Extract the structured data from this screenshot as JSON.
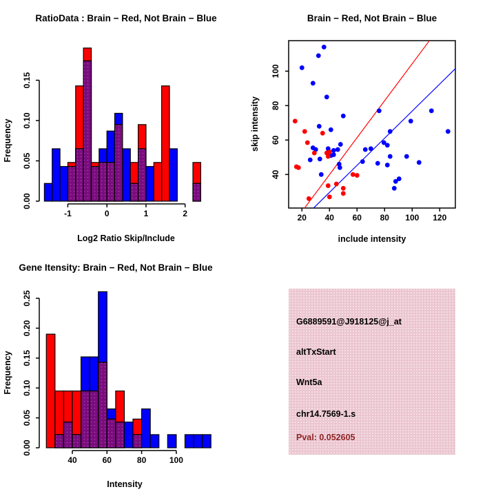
{
  "page": {
    "background": "#FFFFFF"
  },
  "colors": {
    "red": "#FF0000",
    "blue": "#0000FF",
    "overlap": "#7A0D7E",
    "overlap_dot": "#B13FB1",
    "axis": "#000000",
    "pval_text": "#8E2626",
    "panel_bg": "#EBC6D1",
    "panel_dot": "#F8E6EC"
  },
  "chart_data": [
    {
      "type": "bar",
      "subtype": "overlaid-histogram",
      "name": "ratio-histogram",
      "title": "RatioData : Brain − Red, Not Brain − Blue",
      "xlabel": "Log2 Ratio Skip/Include",
      "ylabel": "Frequency",
      "legend": {
        "red": "Brain",
        "blue": "Not Brain"
      },
      "x_ticks": [
        -1,
        0,
        1,
        2
      ],
      "y_ticks": [
        0,
        0.05,
        0.1,
        0.15
      ],
      "y_tick_labels": [
        "0.00",
        "0.05",
        "0.10",
        "0.15"
      ],
      "xlim": [
        -1.8,
        2.6
      ],
      "ylim": [
        0,
        0.197
      ],
      "grid": false,
      "bin_width": 0.2,
      "bins": [
        {
          "x": -1.6,
          "red": 0,
          "blue": 0.022
        },
        {
          "x": -1.4,
          "red": 0,
          "blue": 0.065
        },
        {
          "x": -1.2,
          "red": 0,
          "blue": 0.043
        },
        {
          "x": -1.0,
          "red": 0.048,
          "blue": 0.043
        },
        {
          "x": -0.8,
          "red": 0.143,
          "blue": 0.065
        },
        {
          "x": -0.6,
          "red": 0.19,
          "blue": 0.174
        },
        {
          "x": -0.4,
          "red": 0.048,
          "blue": 0.043
        },
        {
          "x": -0.2,
          "red": 0.048,
          "blue": 0.065
        },
        {
          "x": 0.0,
          "red": 0.048,
          "blue": 0.087
        },
        {
          "x": 0.2,
          "red": 0.095,
          "blue": 0.109
        },
        {
          "x": 0.4,
          "red": 0,
          "blue": 0.065
        },
        {
          "x": 0.6,
          "red": 0.048,
          "blue": 0.022
        },
        {
          "x": 0.8,
          "red": 0.095,
          "blue": 0.065
        },
        {
          "x": 1.0,
          "red": 0,
          "blue": 0.043
        },
        {
          "x": 1.2,
          "red": 0.048,
          "blue": 0
        },
        {
          "x": 1.4,
          "red": 0.143,
          "blue": 0
        },
        {
          "x": 1.6,
          "red": 0,
          "blue": 0.065
        },
        {
          "x": 2.2,
          "red": 0.048,
          "blue": 0.022
        }
      ]
    },
    {
      "type": "scatter",
      "name": "intensity-scatter",
      "title": "Brain − Red, Not Brain − Blue",
      "xlabel": "include intensity",
      "ylabel": "skip intensity",
      "x_ticks": [
        20,
        40,
        60,
        80,
        100,
        120
      ],
      "y_ticks": [
        40,
        60,
        80,
        100
      ],
      "xlim": [
        10.4,
        131.4
      ],
      "ylim": [
        20.5,
        117.7
      ],
      "grid": false,
      "red_points": [
        [
          15,
          71
        ],
        [
          22,
          65
        ],
        [
          35,
          64
        ],
        [
          24,
          58.5
        ],
        [
          29,
          52.5
        ],
        [
          38,
          52.5
        ],
        [
          40,
          53
        ],
        [
          39,
          50.5
        ],
        [
          16,
          44.5
        ],
        [
          17.5,
          44
        ],
        [
          57,
          40
        ],
        [
          60,
          39.5
        ],
        [
          39,
          33.5
        ],
        [
          45,
          34.5
        ],
        [
          50,
          32
        ],
        [
          50,
          29
        ],
        [
          40,
          27
        ],
        [
          25,
          26
        ]
      ],
      "blue_points": [
        [
          36,
          114
        ],
        [
          32,
          109
        ],
        [
          20,
          102
        ],
        [
          28,
          93
        ],
        [
          38,
          85
        ],
        [
          50,
          74
        ],
        [
          76,
          77
        ],
        [
          114,
          77
        ],
        [
          99,
          71
        ],
        [
          126,
          65
        ],
        [
          84,
          65
        ],
        [
          32.5,
          68
        ],
        [
          41,
          66
        ],
        [
          48,
          57.5
        ],
        [
          43,
          54
        ],
        [
          46,
          54.5
        ],
        [
          39,
          55
        ],
        [
          39.5,
          53.5
        ],
        [
          28,
          55.5
        ],
        [
          30,
          54.5
        ],
        [
          66,
          54.5
        ],
        [
          70,
          55
        ],
        [
          79.5,
          58.5
        ],
        [
          82,
          57
        ],
        [
          26,
          48.5
        ],
        [
          33,
          49
        ],
        [
          43,
          51.5
        ],
        [
          41,
          51
        ],
        [
          47,
          46
        ],
        [
          47.5,
          44
        ],
        [
          34,
          40
        ],
        [
          64,
          47.5
        ],
        [
          75,
          46.5
        ],
        [
          82,
          45.5
        ],
        [
          84,
          50.5
        ],
        [
          96,
          50.5
        ],
        [
          105,
          47
        ],
        [
          88,
          36
        ],
        [
          90.5,
          37.5
        ],
        [
          87,
          32
        ]
      ],
      "red_line": [
        [
          21.9,
          20.5
        ],
        [
          112.5,
          117.7
        ]
      ],
      "blue_line": [
        [
          28.4,
          20.5
        ],
        [
          131.4,
          101.5
        ]
      ]
    },
    {
      "type": "bar",
      "subtype": "overlaid-histogram",
      "name": "gene-intensity-histogram",
      "title": "Gene Itensity: Brain − Red, Not Brain − Blue",
      "xlabel": "Intensity",
      "ylabel": "Frequency",
      "legend": {
        "red": "Brain",
        "blue": "Not Brain"
      },
      "x_ticks": [
        40,
        60,
        80,
        100
      ],
      "y_ticks": [
        0,
        0.05,
        0.1,
        0.15,
        0.2,
        0.25
      ],
      "y_tick_labels": [
        "0.00",
        "0.05",
        "0.10",
        "0.15",
        "0.20",
        "0.25"
      ],
      "xlim": [
        21,
        121
      ],
      "ylim": [
        0,
        0.272
      ],
      "grid": false,
      "bin_width": 5,
      "bins": [
        {
          "x": 25,
          "red": 0.19,
          "blue": 0
        },
        {
          "x": 30,
          "red": 0.095,
          "blue": 0.022
        },
        {
          "x": 35,
          "red": 0.095,
          "blue": 0.043
        },
        {
          "x": 40,
          "red": 0.095,
          "blue": 0.022
        },
        {
          "x": 45,
          "red": 0.095,
          "blue": 0.152
        },
        {
          "x": 50,
          "red": 0.095,
          "blue": 0.152
        },
        {
          "x": 55,
          "red": 0.143,
          "blue": 0.261
        },
        {
          "x": 60,
          "red": 0.048,
          "blue": 0.065
        },
        {
          "x": 65,
          "red": 0.095,
          "blue": 0.043
        },
        {
          "x": 70,
          "red": 0,
          "blue": 0.043
        },
        {
          "x": 75,
          "red": 0.048,
          "blue": 0.022
        },
        {
          "x": 80,
          "red": 0,
          "blue": 0.065
        },
        {
          "x": 85,
          "red": 0,
          "blue": 0.022
        },
        {
          "x": 95,
          "red": 0,
          "blue": 0.022
        },
        {
          "x": 105,
          "red": 0,
          "blue": 0.022
        },
        {
          "x": 110,
          "red": 0,
          "blue": 0.022
        },
        {
          "x": 115,
          "red": 0,
          "blue": 0.022
        }
      ]
    }
  ],
  "info_panel": {
    "probe_id": "G6889591@J918125@j_at",
    "event_type": "altTxStart",
    "gene": "Wnt5a",
    "location": "chr14.7569-1.s",
    "pval": "Pval: 0.052605"
  }
}
